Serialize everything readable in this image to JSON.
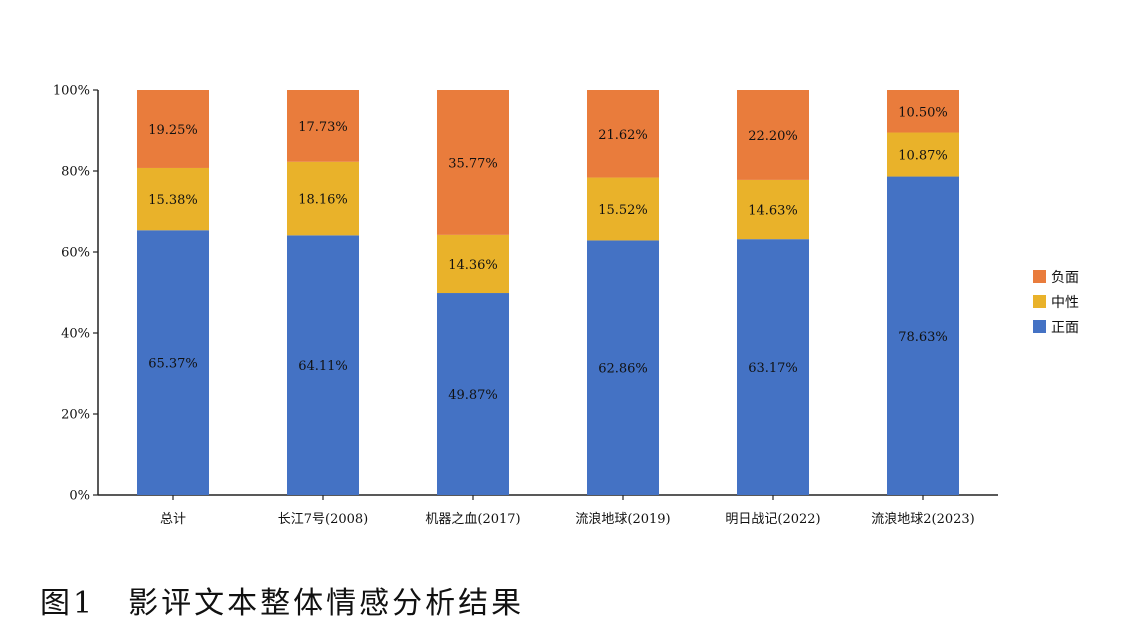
{
  "caption": "图1　影评文本整体情感分析结果",
  "chart_data": {
    "type": "bar",
    "stacked": true,
    "percent": true,
    "categories": [
      "总计",
      "长江7号(2008)",
      "机器之血(2017)",
      "流浪地球(2019)",
      "明日战记(2022)",
      "流浪地球2(2023)"
    ],
    "series": [
      {
        "name": "正面",
        "color": "#4472C4",
        "values": [
          65.37,
          64.11,
          49.87,
          62.86,
          63.17,
          78.63
        ],
        "labels": [
          "65.37%",
          "64.11%",
          "49.87%",
          "62.86%",
          "63.17%",
          "78.63%"
        ]
      },
      {
        "name": "中性",
        "color": "#E9B22A",
        "values": [
          15.38,
          18.16,
          14.36,
          15.52,
          14.63,
          10.87
        ],
        "labels": [
          "15.38%",
          "18.16%",
          "14.36%",
          "15.52%",
          "14.63%",
          "10.87%"
        ]
      },
      {
        "name": "负面",
        "color": "#E97C3C",
        "values": [
          19.25,
          17.73,
          35.77,
          21.62,
          22.2,
          10.5
        ],
        "labels": [
          "19.25%",
          "17.73%",
          "35.77%",
          "21.62%",
          "22.20%",
          "10.50%"
        ]
      }
    ],
    "ylim": [
      0,
      100
    ],
    "yticks": [
      "0%",
      "20%",
      "40%",
      "60%",
      "80%",
      "100%"
    ],
    "legend_order": [
      "负面",
      "中性",
      "正面"
    ],
    "legend_position": "right",
    "grid": false
  }
}
